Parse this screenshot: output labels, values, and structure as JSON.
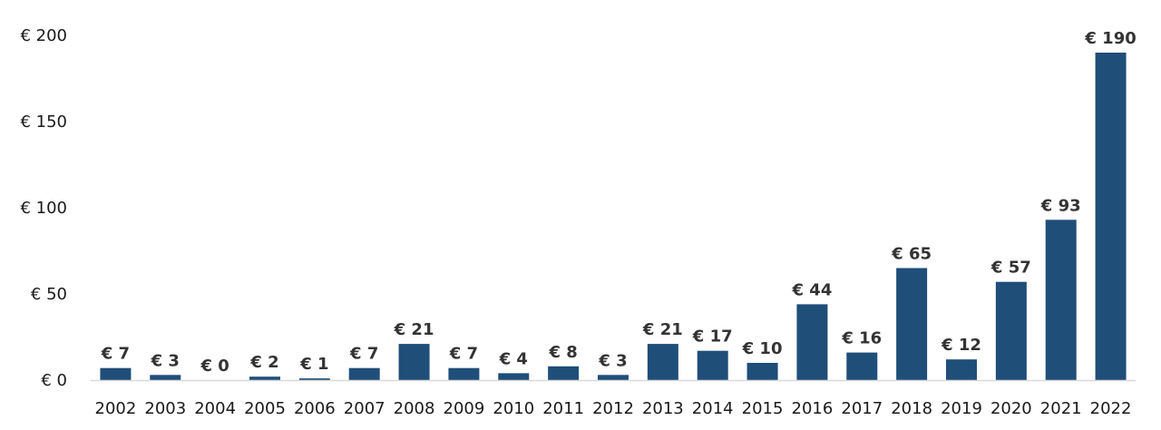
{
  "chart_data": {
    "type": "bar",
    "title": "",
    "xlabel": "",
    "ylabel": "",
    "categories": [
      "2002",
      "2003",
      "2004",
      "2005",
      "2006",
      "2007",
      "2008",
      "2009",
      "2010",
      "2011",
      "2012",
      "2013",
      "2014",
      "2015",
      "2016",
      "2017",
      "2018",
      "2019",
      "2020",
      "2021",
      "2022"
    ],
    "values": [
      7,
      3,
      0,
      2,
      1,
      7,
      21,
      7,
      4,
      8,
      3,
      21,
      17,
      10,
      44,
      16,
      65,
      12,
      57,
      93,
      190
    ],
    "value_labels": [
      "€ 7",
      "€ 3",
      "€ 0",
      "€ 2",
      "€ 1",
      "€ 7",
      "€ 21",
      "€ 7",
      "€ 4",
      "€ 8",
      "€ 3",
      "€ 21",
      "€ 17",
      "€ 10",
      "€ 44",
      "€ 16",
      "€ 65",
      "€ 12",
      "€ 57",
      "€ 93",
      "€ 190"
    ],
    "ylim": [
      0,
      200
    ],
    "yticks": [
      0,
      50,
      100,
      150,
      200
    ],
    "ytick_labels": [
      "€ 0",
      "€ 50",
      "€ 100",
      "€ 150",
      "€ 200"
    ],
    "grid": false,
    "legend": "none",
    "bar_color": "#1f4e79",
    "axis_color": "#d9d9d9"
  }
}
